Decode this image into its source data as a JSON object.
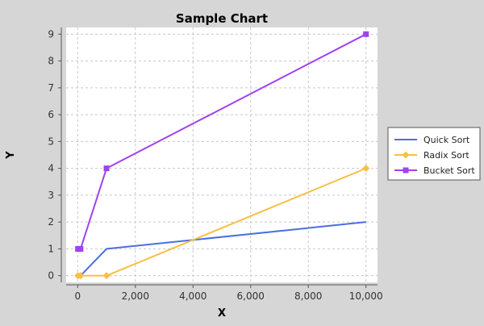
{
  "chart_data": {
    "type": "line",
    "title": "Sample Chart",
    "xlabel": "X",
    "ylabel": "Y",
    "xlim": [
      -400,
      10400
    ],
    "ylim": [
      -0.25,
      9.25
    ],
    "x_ticks": [
      0,
      2000,
      4000,
      6000,
      8000,
      10000
    ],
    "x_tick_labels": [
      "0",
      "2,000",
      "4,000",
      "6,000",
      "8,000",
      "10,000"
    ],
    "y_ticks": [
      0,
      1,
      2,
      3,
      4,
      5,
      6,
      7,
      8,
      9
    ],
    "y_tick_labels": [
      "0",
      "1",
      "2",
      "3",
      "4",
      "5",
      "6",
      "7",
      "8",
      "9"
    ],
    "grid": true,
    "legend_position": "right",
    "series": [
      {
        "name": "Quick Sort",
        "color": "#4a6fe0",
        "marker": "none",
        "points": [
          [
            10,
            0
          ],
          [
            100,
            0
          ],
          [
            1000,
            1
          ],
          [
            10000,
            2
          ]
        ]
      },
      {
        "name": "Radix Sort",
        "color": "#f8bf45",
        "marker": "diamond",
        "points": [
          [
            10,
            0
          ],
          [
            100,
            0
          ],
          [
            1000,
            0
          ],
          [
            10000,
            4
          ]
        ]
      },
      {
        "name": "Bucket Sort",
        "color": "#a042f0",
        "marker": "square",
        "points": [
          [
            10,
            1
          ],
          [
            100,
            1
          ],
          [
            1000,
            4
          ],
          [
            10000,
            9
          ]
        ]
      }
    ]
  }
}
